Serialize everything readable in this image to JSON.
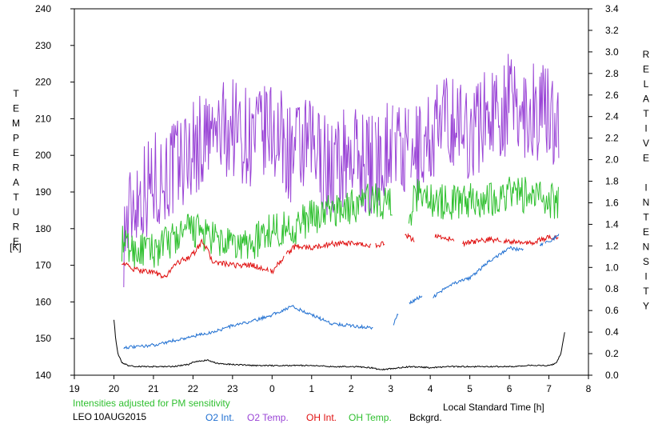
{
  "chart_data": {
    "type": "line",
    "station": "LEO",
    "date_label": "10AUG2015",
    "note": "Intensities adjusted for PM sensitivity",
    "xlabel": "Local Standard Time [h]",
    "ylabel_left": "TEMPERATURE",
    "ylabel_left_unit": "[K]",
    "ylabel_right": "RELATIVE INTENSITY",
    "xlim": [
      19,
      32
    ],
    "xticks": [
      19,
      20,
      21,
      22,
      23,
      24,
      25,
      26,
      27,
      28,
      29,
      30,
      31,
      32
    ],
    "xtick_labels": [
      "19",
      "20",
      "21",
      "22",
      "23",
      "0",
      "1",
      "2",
      "3",
      "4",
      "5",
      "6",
      "7",
      "8"
    ],
    "ylim_left": [
      140,
      240
    ],
    "yticks_left": [
      140,
      150,
      160,
      170,
      180,
      190,
      200,
      210,
      220,
      230,
      240
    ],
    "ylim_right": [
      0,
      3.4
    ],
    "yticks_right": [
      "0.0",
      "0.2",
      "0.4",
      "0.6",
      "0.8",
      "1.0",
      "1.2",
      "1.4",
      "1.6",
      "1.8",
      "2.0",
      "2.2",
      "2.4",
      "2.6",
      "2.8",
      "3.0",
      "3.2",
      "3.4"
    ],
    "colors": {
      "o2_int": "#1f6fd1",
      "o2_temp": "#9a45d6",
      "oh_int": "#e01010",
      "oh_temp": "#30c030",
      "bckgrd": "#000000",
      "note": "#30c030"
    },
    "series": [
      {
        "key": "o2_temp",
        "name": "O2 Temp.",
        "axis": "left",
        "noise": 14,
        "gaps": [
          [
            26.55,
            26.6
          ],
          [
            27.05,
            27.1
          ],
          [
            27.45,
            27.5
          ]
        ],
        "x": [
          20.25,
          20.5,
          21.0,
          21.5,
          22.0,
          22.5,
          23.0,
          23.5,
          24.0,
          24.5,
          25.0,
          25.5,
          26.0,
          26.5,
          27.0,
          27.5,
          28.0,
          28.5,
          29.0,
          29.5,
          30.0,
          30.5,
          31.0,
          31.25
        ],
        "values": [
          178,
          188,
          193,
          196,
          202,
          205,
          208,
          204,
          207,
          200,
          202,
          196,
          201,
          197,
          204,
          198,
          205,
          210,
          206,
          212,
          214,
          212,
          212,
          210
        ]
      },
      {
        "key": "oh_temp",
        "name": "OH Temp.",
        "axis": "left",
        "noise": 5,
        "gaps": [
          [
            27.05,
            27.45
          ]
        ],
        "x": [
          20.2,
          20.5,
          21.0,
          21.5,
          22.0,
          22.5,
          23.0,
          23.5,
          24.0,
          24.5,
          25.0,
          25.5,
          26.0,
          26.5,
          27.0,
          27.5,
          27.75,
          28.0,
          28.5,
          29.0,
          29.5,
          30.0,
          30.5,
          31.0,
          31.25
        ],
        "values": [
          176,
          174,
          174,
          177,
          180,
          177,
          175,
          176,
          180,
          180,
          183,
          185,
          186,
          188,
          187,
          185,
          191,
          188,
          187,
          188,
          188,
          190,
          189,
          188,
          187
        ]
      },
      {
        "key": "oh_int",
        "name": "OH Int.",
        "axis": "right",
        "noise": 0.025,
        "gaps": [
          [
            23.9,
            23.95
          ],
          [
            24.3,
            24.35
          ],
          [
            26.5,
            26.6
          ],
          [
            26.85,
            27.35
          ],
          [
            27.6,
            28.1
          ],
          [
            28.6,
            28.8
          ],
          [
            29.8,
            29.85
          ]
        ],
        "x": [
          20.2,
          20.5,
          21.0,
          21.3,
          21.5,
          22.0,
          22.25,
          22.5,
          23.0,
          23.5,
          24.0,
          24.3,
          24.6,
          25.0,
          25.5,
          26.0,
          26.5,
          26.85,
          27.35,
          27.6,
          28.1,
          28.6,
          28.8,
          29.5,
          30.0,
          30.5,
          31.0,
          31.25
        ],
        "values": [
          1.05,
          0.98,
          0.96,
          0.9,
          1.02,
          1.12,
          1.25,
          1.05,
          1.02,
          1.02,
          0.96,
          1.1,
          1.2,
          1.18,
          1.22,
          1.22,
          1.2,
          1.22,
          1.3,
          1.25,
          1.3,
          1.25,
          1.22,
          1.26,
          1.24,
          1.22,
          1.28,
          1.28
        ]
      },
      {
        "key": "o2_int",
        "name": "O2 Int.",
        "axis": "right",
        "noise": 0.015,
        "gaps": [
          [
            26.55,
            27.05
          ],
          [
            27.2,
            27.45
          ],
          [
            27.8,
            28.05
          ],
          [
            30.35,
            30.75
          ],
          [
            30.85,
            30.9
          ]
        ],
        "x": [
          20.25,
          20.5,
          21.0,
          21.5,
          22.0,
          22.5,
          23.0,
          23.5,
          24.0,
          24.5,
          25.0,
          25.5,
          26.0,
          26.5,
          27.05,
          27.2,
          27.45,
          27.8,
          28.05,
          28.5,
          29.0,
          29.5,
          30.0,
          30.35,
          30.75,
          31.0,
          31.25
        ],
        "values": [
          0.26,
          0.26,
          0.28,
          0.32,
          0.36,
          0.4,
          0.46,
          0.5,
          0.56,
          0.64,
          0.56,
          0.48,
          0.46,
          0.44,
          0.46,
          0.58,
          0.66,
          0.74,
          0.72,
          0.84,
          0.9,
          1.06,
          1.18,
          1.16,
          1.2,
          1.24,
          1.3
        ]
      },
      {
        "key": "bckgrd",
        "name": "Bckgrd.",
        "axis": "right",
        "noise": 0.006,
        "gaps": [],
        "x": [
          20.0,
          20.05,
          20.1,
          20.2,
          20.35,
          20.6,
          21.0,
          21.5,
          21.9,
          22.0,
          22.35,
          22.6,
          23.0,
          23.5,
          24.0,
          24.5,
          25.0,
          25.5,
          26.0,
          26.5,
          26.75,
          27.0,
          27.5,
          28.0,
          28.5,
          29.0,
          29.5,
          30.0,
          30.5,
          31.0,
          31.1,
          31.2,
          31.3,
          31.4
        ],
        "values": [
          0.52,
          0.32,
          0.2,
          0.12,
          0.09,
          0.08,
          0.08,
          0.08,
          0.1,
          0.12,
          0.14,
          0.11,
          0.1,
          0.09,
          0.09,
          0.09,
          0.09,
          0.08,
          0.08,
          0.07,
          0.05,
          0.06,
          0.08,
          0.07,
          0.08,
          0.08,
          0.08,
          0.08,
          0.09,
          0.09,
          0.1,
          0.12,
          0.2,
          0.4
        ]
      }
    ]
  }
}
